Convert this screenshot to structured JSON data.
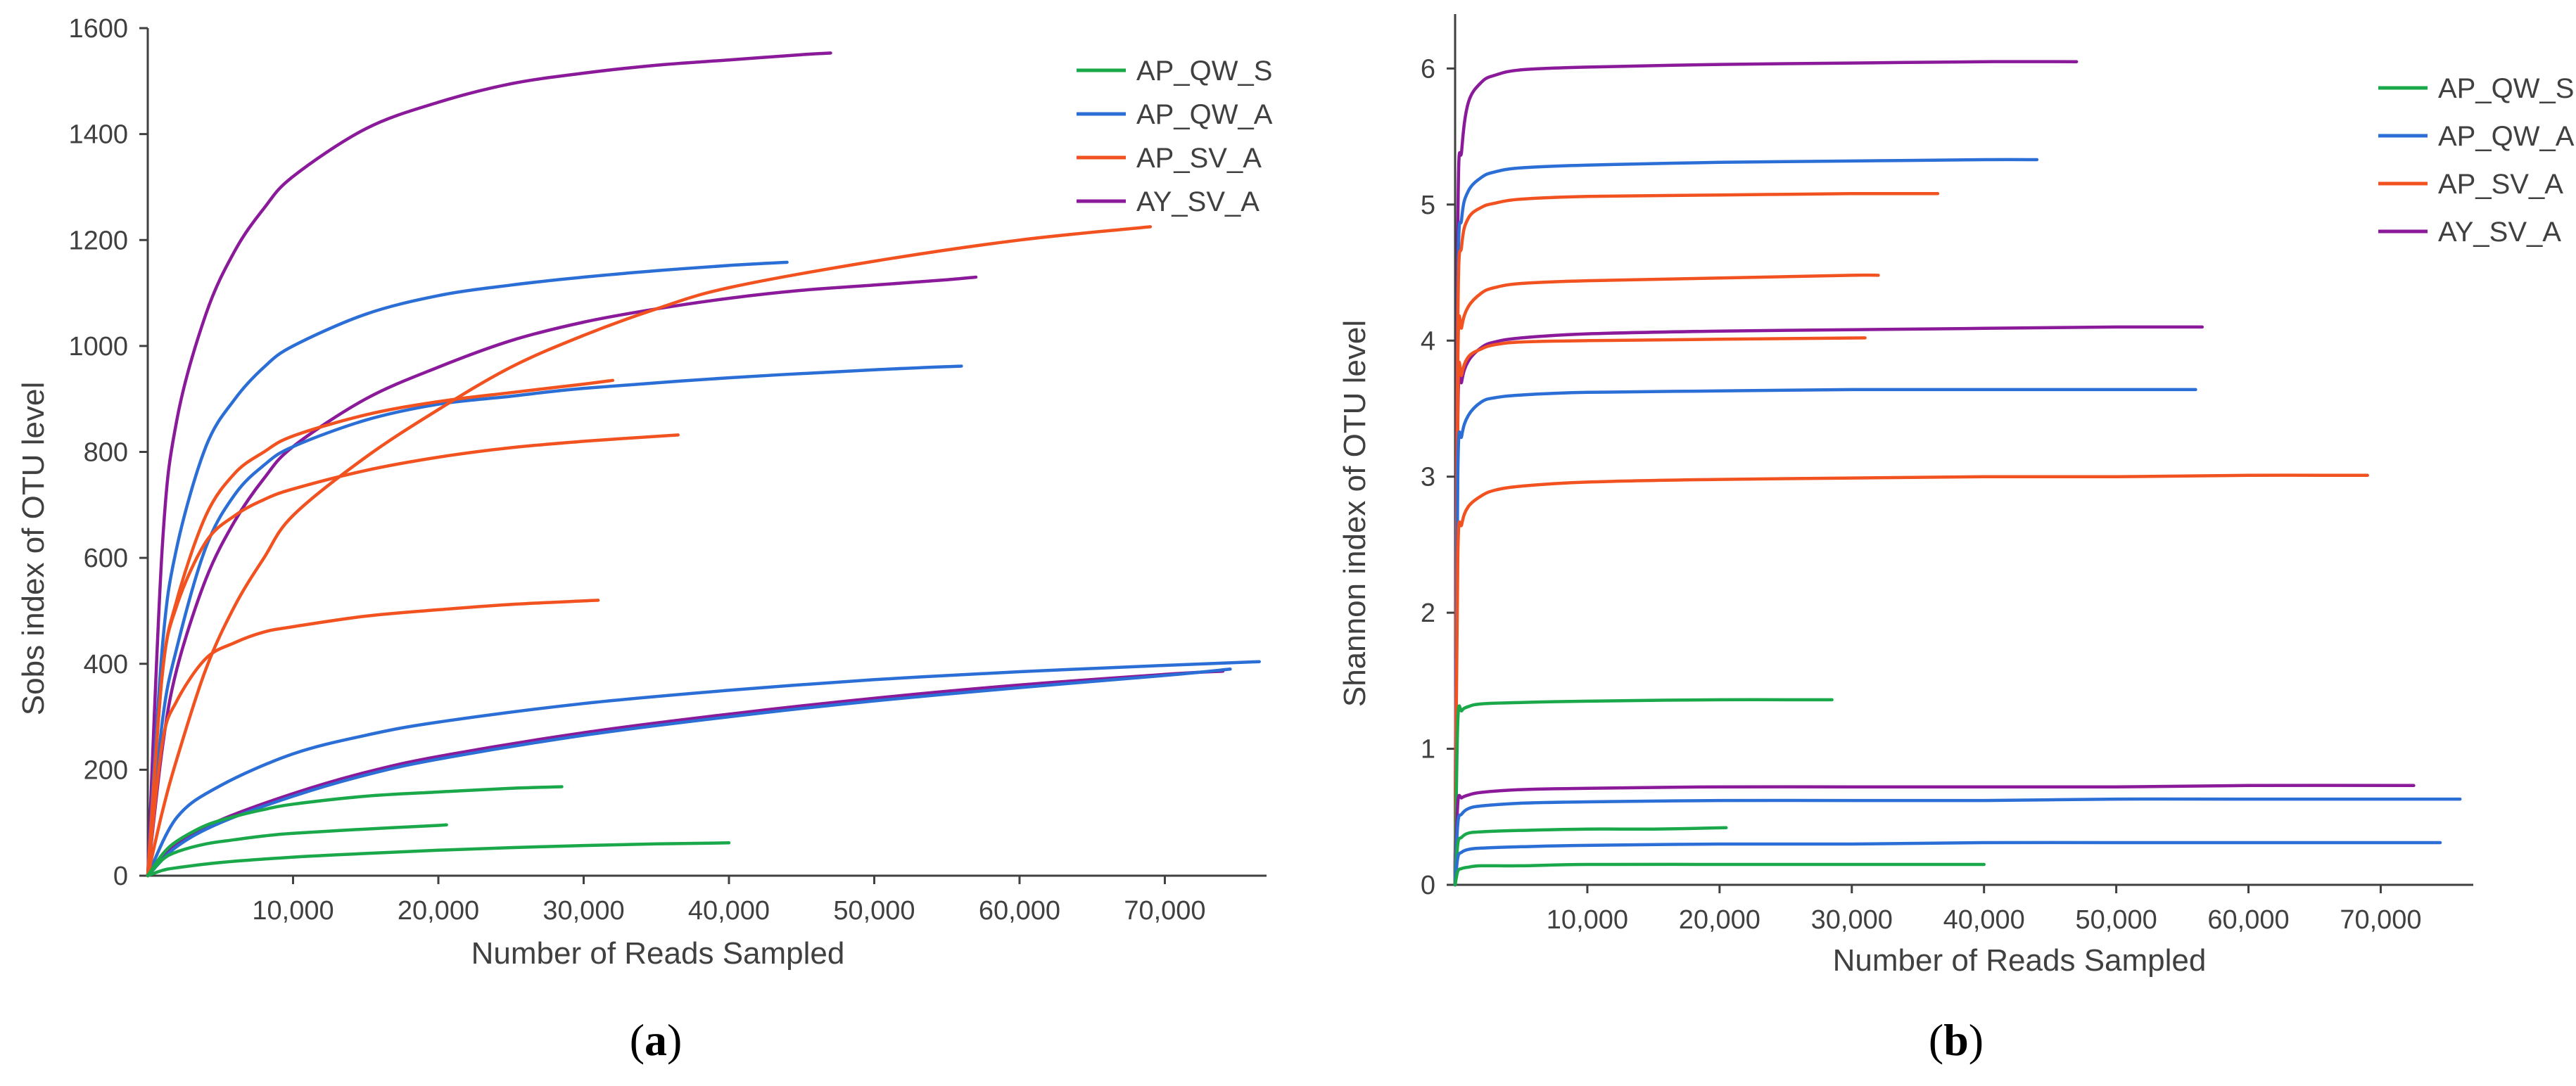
{
  "colors": {
    "AP_QW_S": "#1aa84a",
    "AP_QW_A": "#2b6fd6",
    "AP_SV_A": "#f2521f",
    "AY_SV_A": "#8a1a9a"
  },
  "chart_data": [
    {
      "panel": "a",
      "caption": "(a)",
      "type": "line",
      "title": "",
      "xlabel": "Number of Reads Sampled",
      "ylabel": "Sobs index of OTU level",
      "xlim": [
        0,
        77000
      ],
      "ylim": [
        0,
        1600
      ],
      "xticks": [
        10000,
        20000,
        30000,
        40000,
        50000,
        60000,
        70000
      ],
      "xtick_labels": [
        "10,000",
        "20,000",
        "30,000",
        "40,000",
        "50,000",
        "60,000",
        "70,000"
      ],
      "yticks": [
        0,
        200,
        400,
        600,
        800,
        1000,
        1200,
        1400,
        1600
      ],
      "ytick_labels": [
        "0",
        "200",
        "400",
        "600",
        "800",
        "1000",
        "1200",
        "1400",
        "1600"
      ],
      "legend": [
        "AP_QW_S",
        "AP_QW_A",
        "AP_SV_A",
        "AY_SV_A"
      ],
      "legend_position": "top-right",
      "series": [
        {
          "group": "AY_SV_A",
          "x": [
            0,
            1000,
            2000,
            4000,
            6000,
            8000,
            10000,
            15000,
            20000,
            25000,
            30000,
            35000,
            40000,
            45000,
            47000
          ],
          "y": [
            0,
            620,
            860,
            1060,
            1180,
            1260,
            1320,
            1410,
            1460,
            1495,
            1515,
            1530,
            1540,
            1550,
            1553
          ]
        },
        {
          "group": "AY_SV_A",
          "x": [
            0,
            1000,
            2000,
            4000,
            6000,
            8000,
            10000,
            15000,
            20000,
            25000,
            30000,
            35000,
            40000,
            45000,
            50000,
            55000,
            57000
          ],
          "y": [
            0,
            240,
            390,
            560,
            670,
            750,
            810,
            900,
            960,
            1010,
            1045,
            1070,
            1090,
            1105,
            1115,
            1125,
            1130
          ]
        },
        {
          "group": "AY_SV_A",
          "x": [
            0,
            2000,
            5000,
            10000,
            15000,
            20000,
            30000,
            40000,
            50000,
            60000,
            70000,
            74000
          ],
          "y": [
            0,
            60,
            105,
            155,
            195,
            225,
            270,
            305,
            335,
            360,
            380,
            386
          ]
        },
        {
          "group": "AP_QW_A",
          "x": [
            0,
            1000,
            2000,
            4000,
            6000,
            8000,
            10000,
            15000,
            20000,
            25000,
            30000,
            35000,
            40000,
            44000
          ],
          "y": [
            0,
            430,
            620,
            810,
            900,
            960,
            1000,
            1060,
            1095,
            1115,
            1130,
            1142,
            1152,
            1158
          ]
        },
        {
          "group": "AP_QW_A",
          "x": [
            0,
            1000,
            2000,
            4000,
            6000,
            8000,
            10000,
            15000,
            20000,
            25000,
            30000,
            40000,
            50000,
            56000
          ],
          "y": [
            0,
            290,
            430,
            620,
            720,
            775,
            810,
            860,
            890,
            905,
            920,
            940,
            955,
            962
          ]
        },
        {
          "group": "AP_QW_A",
          "x": [
            0,
            2000,
            5000,
            10000,
            15000,
            20000,
            30000,
            40000,
            50000,
            60000,
            70000,
            76500
          ],
          "y": [
            0,
            110,
            170,
            230,
            265,
            290,
            325,
            350,
            370,
            385,
            397,
            404
          ]
        },
        {
          "group": "AP_QW_A",
          "x": [
            0,
            2000,
            5000,
            10000,
            15000,
            20000,
            30000,
            40000,
            50000,
            60000,
            70000,
            74500
          ],
          "y": [
            0,
            55,
            100,
            150,
            190,
            220,
            265,
            300,
            330,
            355,
            378,
            390
          ]
        },
        {
          "group": "AP_SV_A",
          "x": [
            0,
            1000,
            2000,
            4000,
            6000,
            8000,
            10000,
            15000,
            20000,
            25000,
            30000,
            35000,
            40000,
            50000,
            60000,
            69000
          ],
          "y": [
            0,
            120,
            220,
            390,
            510,
            600,
            680,
            790,
            880,
            960,
            1020,
            1070,
            1110,
            1160,
            1200,
            1225
          ]
        },
        {
          "group": "AP_SV_A",
          "x": [
            0,
            1000,
            2000,
            4000,
            6000,
            8000,
            10000,
            15000,
            20000,
            25000,
            30000,
            32000
          ],
          "y": [
            0,
            380,
            520,
            680,
            760,
            800,
            830,
            870,
            895,
            912,
            928,
            935
          ]
        },
        {
          "group": "AP_SV_A",
          "x": [
            0,
            1000,
            2000,
            4000,
            6000,
            8000,
            10000,
            15000,
            20000,
            25000,
            30000,
            36500
          ],
          "y": [
            0,
            380,
            510,
            630,
            680,
            710,
            730,
            765,
            790,
            808,
            820,
            832
          ]
        },
        {
          "group": "AP_SV_A",
          "x": [
            0,
            1000,
            2000,
            4000,
            6000,
            8000,
            10000,
            15000,
            20000,
            25000,
            31000
          ],
          "y": [
            0,
            250,
            330,
            410,
            440,
            460,
            470,
            490,
            502,
            512,
            520
          ]
        },
        {
          "group": "AP_QW_S",
          "x": [
            0,
            1000,
            2000,
            4000,
            6000,
            8000,
            10000,
            15000,
            20000,
            25000,
            28500
          ],
          "y": [
            0,
            40,
            65,
            95,
            112,
            125,
            135,
            150,
            158,
            165,
            168
          ]
        },
        {
          "group": "AP_QW_S",
          "x": [
            0,
            1000,
            2000,
            4000,
            6000,
            8000,
            10000,
            15000,
            20000,
            20500
          ],
          "y": [
            0,
            30,
            45,
            60,
            68,
            75,
            80,
            88,
            95,
            96
          ]
        },
        {
          "group": "AP_QW_S",
          "x": [
            0,
            1000,
            2000,
            5000,
            10000,
            15000,
            20000,
            25000,
            30000,
            35000,
            40000
          ],
          "y": [
            0,
            10,
            15,
            25,
            35,
            42,
            48,
            53,
            57,
            60,
            62
          ]
        }
      ]
    },
    {
      "panel": "b",
      "caption": "(b)",
      "type": "line",
      "title": "",
      "xlabel": "Number of Reads Sampled",
      "ylabel": "Shannon index of OTU level",
      "xlim": [
        0,
        77000
      ],
      "ylim": [
        0,
        6.4
      ],
      "xticks": [
        10000,
        20000,
        30000,
        40000,
        50000,
        60000,
        70000
      ],
      "xtick_labels": [
        "10,000",
        "20,000",
        "30,000",
        "40,000",
        "50,000",
        "60,000",
        "70,000"
      ],
      "yticks": [
        0,
        1,
        2,
        3,
        4,
        5,
        6
      ],
      "ytick_labels": [
        "0",
        "1",
        "2",
        "3",
        "4",
        "5",
        "6"
      ],
      "legend": [
        "AP_QW_S",
        "AP_QW_A",
        "AP_SV_A",
        "AY_SV_A"
      ],
      "legend_position": "top-right",
      "series": [
        {
          "group": "AY_SV_A",
          "x": [
            0,
            200,
            500,
            1000,
            2000,
            3000,
            5000,
            10000,
            20000,
            30000,
            40000,
            47000
          ],
          "y": [
            0,
            4.8,
            5.4,
            5.75,
            5.9,
            5.95,
            5.99,
            6.01,
            6.03,
            6.04,
            6.05,
            6.05
          ]
        },
        {
          "group": "AP_QW_A",
          "x": [
            0,
            200,
            500,
            1000,
            2000,
            3000,
            5000,
            10000,
            20000,
            30000,
            40000,
            44000
          ],
          "y": [
            0,
            4.3,
            4.9,
            5.1,
            5.2,
            5.24,
            5.27,
            5.29,
            5.31,
            5.32,
            5.33,
            5.33
          ]
        },
        {
          "group": "AP_SV_A",
          "x": [
            0,
            200,
            500,
            1000,
            2000,
            3000,
            5000,
            10000,
            20000,
            30000,
            36500
          ],
          "y": [
            0,
            4.1,
            4.7,
            4.9,
            4.98,
            5.01,
            5.04,
            5.06,
            5.07,
            5.08,
            5.08
          ]
        },
        {
          "group": "AP_SV_A",
          "x": [
            0,
            200,
            500,
            1000,
            2000,
            3000,
            5000,
            10000,
            20000,
            30000,
            32000
          ],
          "y": [
            0,
            3.8,
            4.1,
            4.25,
            4.35,
            4.39,
            4.42,
            4.44,
            4.46,
            4.48,
            4.48
          ]
        },
        {
          "group": "AY_SV_A",
          "x": [
            0,
            200,
            500,
            1000,
            2000,
            3000,
            5000,
            10000,
            20000,
            30000,
            40000,
            50000,
            56500
          ],
          "y": [
            0,
            3.4,
            3.7,
            3.85,
            3.95,
            3.99,
            4.02,
            4.05,
            4.07,
            4.08,
            4.09,
            4.1,
            4.1
          ]
        },
        {
          "group": "AP_SV_A",
          "x": [
            0,
            200,
            500,
            1000,
            2000,
            3000,
            5000,
            10000,
            20000,
            31000
          ],
          "y": [
            0,
            3.5,
            3.75,
            3.88,
            3.94,
            3.97,
            3.99,
            4.0,
            4.01,
            4.02
          ]
        },
        {
          "group": "AP_QW_A",
          "x": [
            0,
            200,
            500,
            1000,
            2000,
            3000,
            5000,
            10000,
            20000,
            30000,
            40000,
            50000,
            56000
          ],
          "y": [
            0,
            3.0,
            3.3,
            3.45,
            3.55,
            3.58,
            3.6,
            3.62,
            3.63,
            3.64,
            3.64,
            3.64,
            3.64
          ]
        },
        {
          "group": "AP_SV_A",
          "x": [
            0,
            200,
            500,
            1000,
            2000,
            3000,
            5000,
            10000,
            20000,
            30000,
            40000,
            50000,
            60000,
            69000
          ],
          "y": [
            0,
            2.4,
            2.65,
            2.78,
            2.86,
            2.9,
            2.93,
            2.96,
            2.98,
            2.99,
            3.0,
            3.0,
            3.01,
            3.01
          ]
        },
        {
          "group": "AP_QW_S",
          "x": [
            0,
            200,
            500,
            1000,
            2000,
            5000,
            10000,
            20000,
            28500
          ],
          "y": [
            0,
            1.2,
            1.28,
            1.31,
            1.33,
            1.34,
            1.35,
            1.36,
            1.36
          ]
        },
        {
          "group": "AY_SV_A",
          "x": [
            0,
            200,
            500,
            1000,
            2000,
            5000,
            10000,
            20000,
            30000,
            40000,
            50000,
            60000,
            72500
          ],
          "y": [
            0,
            0.6,
            0.64,
            0.66,
            0.68,
            0.7,
            0.71,
            0.72,
            0.72,
            0.72,
            0.72,
            0.73,
            0.73
          ]
        },
        {
          "group": "AP_QW_A",
          "x": [
            0,
            200,
            500,
            1000,
            2000,
            5000,
            10000,
            20000,
            30000,
            40000,
            50000,
            60000,
            76000
          ],
          "y": [
            0,
            0.45,
            0.52,
            0.56,
            0.58,
            0.6,
            0.61,
            0.62,
            0.62,
            0.62,
            0.63,
            0.63,
            0.63
          ]
        },
        {
          "group": "AP_QW_S",
          "x": [
            0,
            200,
            500,
            1000,
            2000,
            5000,
            10000,
            15000,
            20500
          ],
          "y": [
            0,
            0.3,
            0.35,
            0.38,
            0.39,
            0.4,
            0.41,
            0.41,
            0.42
          ]
        },
        {
          "group": "AP_QW_A",
          "x": [
            0,
            200,
            500,
            1000,
            2000,
            5000,
            10000,
            20000,
            30000,
            40000,
            50000,
            60000,
            74500
          ],
          "y": [
            0,
            0.2,
            0.24,
            0.26,
            0.27,
            0.28,
            0.29,
            0.3,
            0.3,
            0.31,
            0.31,
            0.31,
            0.31
          ]
        },
        {
          "group": "AP_QW_S",
          "x": [
            0,
            200,
            500,
            1000,
            2000,
            5000,
            10000,
            20000,
            30000,
            40000
          ],
          "y": [
            0,
            0.1,
            0.12,
            0.13,
            0.14,
            0.14,
            0.15,
            0.15,
            0.15,
            0.15
          ]
        }
      ]
    }
  ]
}
